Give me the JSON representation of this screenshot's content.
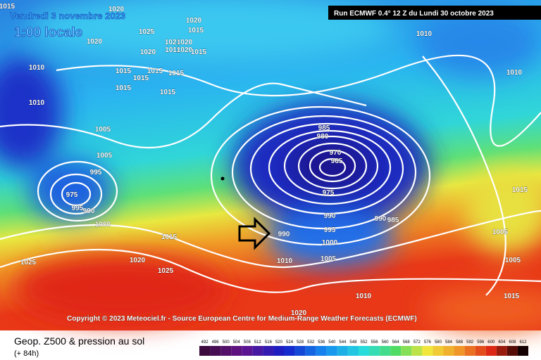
{
  "header": {
    "date": "Vendredi 3 novembre 2023",
    "time": "1:00 locale",
    "run": "Run ECMWF 0.4° 12 Z du Lundi 30 octobre 2023"
  },
  "copyright": "Copyright © 2023 Meteociel.fr - Source European Centre for Medium-Range Weather Forecasts (ECMWF)",
  "footer": {
    "title": "Geop. Z500 & pression au sol",
    "lead": "(+ 84h)"
  },
  "legend": [
    492,
    496,
    500,
    504,
    508,
    512,
    516,
    520,
    524,
    528,
    532,
    536,
    540,
    544,
    548,
    552,
    556,
    560,
    564,
    568,
    572,
    576,
    580,
    584,
    588,
    592,
    596,
    600,
    604,
    608,
    612
  ],
  "isobar_labels": [
    1015,
    1020,
    1020,
    1025,
    1015,
    1020,
    1021,
    1020,
    1011,
    1020,
    1020,
    1015,
    1010,
    1015,
    1015,
    1015,
    1015,
    1015,
    1015,
    1010,
    1005,
    1005,
    995,
    975,
    995,
    990,
    1000,
    1015,
    1025,
    1020,
    1025,
    985,
    980,
    970,
    965,
    975,
    990,
    995,
    1000,
    1005,
    990,
    1010,
    990,
    985,
    1010,
    1010,
    1015,
    1005,
    1005,
    1010,
    1015,
    1020
  ]
}
